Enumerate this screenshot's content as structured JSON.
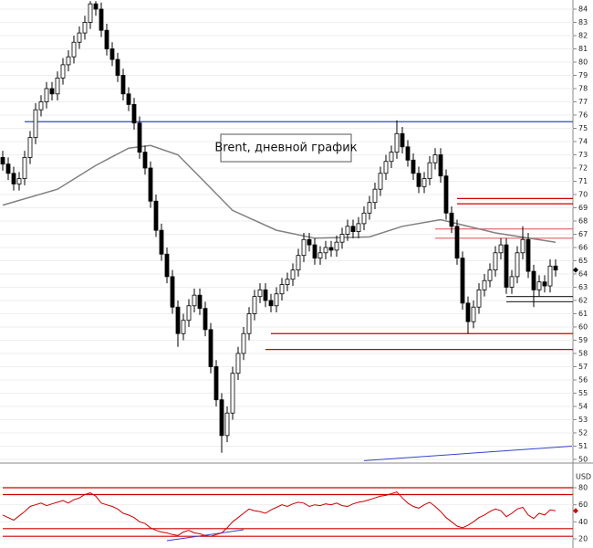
{
  "chart_data": [
    {
      "type": "candlestick",
      "annotation": "Brent, дневной график",
      "ylim": [
        49.86,
        84.69
      ],
      "yticks": [
        50,
        51,
        52,
        53,
        54,
        55,
        56,
        57,
        58,
        59,
        60,
        61,
        62,
        63,
        64,
        65,
        66,
        67,
        68,
        69,
        70,
        71,
        72,
        73,
        74,
        75,
        76,
        77,
        78,
        79,
        80,
        81,
        82,
        83,
        84
      ],
      "grid": true,
      "up_color": "#ffffff",
      "down_color": "#000000",
      "color": "#000000",
      "open": [
        72.8,
        72.3,
        71.6,
        70.8,
        71.2,
        72.8,
        74.3,
        76.4,
        77.0,
        78.0,
        77.6,
        78.8,
        79.8,
        80.4,
        81.5,
        82.2,
        83.0,
        84.4,
        84.0,
        82.4,
        81.0,
        80.2,
        79.0,
        77.6,
        76.8,
        75.4,
        73.2,
        72.0,
        69.5,
        67.3,
        65.5,
        63.8,
        61.5,
        59.5,
        60.5,
        61.6,
        62.4,
        61.4,
        59.8,
        57.0,
        54.5,
        51.8,
        53.5,
        56.5,
        58.0,
        59.5,
        61.0,
        62.3,
        62.8,
        62.0,
        61.6,
        62.5,
        63.2,
        63.6,
        64.3,
        65.4,
        66.6,
        66.2,
        65.2,
        65.6,
        66.0,
        65.8,
        66.4,
        67.0,
        67.6,
        67.2,
        67.8,
        68.6,
        69.4,
        70.4,
        71.6,
        72.5,
        73.2,
        74.6,
        73.6,
        72.6,
        71.6,
        70.6,
        71.2,
        72.4,
        73.0,
        71.4,
        68.6,
        67.6,
        65.2,
        61.8,
        60.4,
        61.5,
        62.8,
        63.5,
        64.3,
        65.6,
        66.2,
        63.0,
        63.8,
        65.6,
        66.6,
        64.2,
        62.8,
        63.4,
        63.1,
        64.6
      ],
      "high": [
        73.3,
        72.8,
        72.1,
        71.7,
        73.3,
        74.8,
        76.9,
        77.5,
        78.5,
        78.5,
        79.3,
        80.3,
        80.9,
        82.0,
        82.7,
        83.5,
        84.6,
        84.6,
        84.5,
        82.9,
        81.5,
        80.7,
        79.5,
        78.1,
        77.3,
        75.9,
        73.7,
        72.5,
        70.0,
        67.8,
        66.0,
        64.3,
        62.0,
        61.0,
        62.1,
        62.9,
        62.9,
        61.9,
        60.3,
        57.5,
        55.0,
        54.0,
        57.0,
        58.5,
        60.0,
        61.5,
        62.8,
        63.3,
        63.3,
        62.5,
        63.0,
        63.7,
        64.1,
        64.8,
        65.9,
        67.1,
        67.1,
        66.7,
        66.1,
        66.5,
        66.5,
        66.9,
        67.5,
        68.1,
        68.1,
        68.3,
        69.1,
        69.9,
        70.9,
        72.1,
        73.0,
        73.7,
        75.6,
        75.1,
        74.1,
        73.1,
        72.1,
        71.7,
        72.9,
        73.5,
        73.5,
        71.9,
        69.1,
        68.1,
        65.7,
        62.3,
        62.0,
        63.3,
        64.0,
        64.8,
        66.1,
        66.7,
        66.7,
        64.3,
        66.1,
        67.6,
        67.1,
        64.7,
        63.9,
        63.9,
        65.1,
        65.1
      ],
      "low": [
        71.8,
        71.1,
        70.3,
        70.3,
        70.7,
        72.3,
        73.8,
        75.9,
        76.5,
        77.1,
        77.1,
        78.3,
        79.3,
        79.9,
        81.0,
        81.7,
        82.5,
        83.5,
        81.9,
        80.5,
        79.7,
        78.5,
        77.1,
        76.3,
        74.9,
        72.7,
        71.5,
        69.0,
        66.8,
        65.0,
        63.3,
        61.0,
        58.5,
        59.0,
        60.0,
        61.1,
        60.9,
        59.3,
        56.5,
        54.0,
        50.5,
        51.3,
        53.0,
        56.0,
        57.5,
        59.0,
        60.5,
        61.8,
        61.5,
        61.1,
        61.1,
        62.0,
        62.7,
        63.1,
        63.8,
        64.9,
        65.7,
        64.7,
        64.7,
        65.1,
        65.3,
        65.3,
        65.9,
        66.5,
        66.7,
        66.7,
        67.3,
        68.1,
        68.9,
        69.9,
        71.1,
        72.0,
        72.7,
        73.1,
        72.1,
        71.1,
        70.1,
        70.1,
        70.7,
        71.9,
        70.9,
        68.1,
        67.1,
        64.7,
        61.3,
        59.5,
        59.9,
        61.0,
        62.3,
        63.0,
        63.8,
        65.1,
        62.5,
        62.5,
        63.3,
        65.1,
        63.7,
        61.5,
        62.3,
        62.6,
        62.6,
        63.8
      ],
      "close": [
        72.3,
        71.6,
        70.8,
        71.2,
        72.8,
        74.3,
        76.4,
        77.0,
        78.0,
        77.6,
        78.8,
        79.8,
        80.4,
        81.5,
        82.2,
        83.0,
        84.4,
        84.0,
        82.4,
        81.0,
        80.2,
        79.0,
        77.6,
        76.8,
        75.4,
        73.2,
        72.0,
        69.5,
        67.3,
        65.5,
        63.8,
        61.5,
        59.5,
        60.5,
        61.6,
        62.4,
        61.4,
        59.8,
        57.0,
        54.5,
        51.8,
        53.5,
        56.5,
        58.0,
        59.5,
        61.0,
        62.3,
        62.8,
        62.0,
        61.6,
        62.5,
        63.2,
        63.6,
        64.3,
        65.4,
        66.6,
        66.2,
        65.2,
        65.6,
        66.0,
        65.8,
        66.4,
        67.0,
        67.6,
        67.2,
        67.8,
        68.6,
        69.4,
        70.4,
        71.6,
        72.5,
        73.2,
        74.6,
        73.6,
        72.6,
        71.6,
        70.6,
        71.2,
        72.4,
        73.0,
        71.4,
        68.6,
        67.6,
        65.2,
        61.8,
        60.4,
        61.5,
        62.8,
        63.5,
        64.3,
        65.6,
        66.2,
        63.0,
        63.8,
        65.6,
        66.6,
        64.2,
        62.8,
        63.4,
        63.1,
        64.6,
        64.3
      ],
      "ma": {
        "color": "#808080",
        "x": [
          0,
          10,
          17,
          23,
          27,
          32,
          37,
          42,
          50,
          57,
          67,
          73,
          80,
          83,
          90,
          101
        ],
        "values": [
          69.2,
          70.4,
          72.2,
          73.5,
          73.7,
          73.0,
          70.9,
          68.8,
          67.3,
          66.7,
          66.8,
          67.6,
          68.1,
          67.8,
          67.1,
          66.4
        ]
      },
      "levels": [
        {
          "value": 75.5,
          "start": 4,
          "color": "#3344cc"
        },
        {
          "value": 69.7,
          "start": 83,
          "color": "#cc0000"
        },
        {
          "value": 69.3,
          "start": 83,
          "color": "#cc0000"
        },
        {
          "value": 67.4,
          "start": 79,
          "color": "#e06060"
        },
        {
          "value": 66.7,
          "start": 79,
          "color": "#e06060"
        },
        {
          "value": 59.5,
          "start": 49,
          "color": "#cc0000"
        },
        {
          "value": 58.3,
          "start": 48,
          "color": "#cc0000"
        },
        {
          "value": 62.3,
          "start": 92,
          "color": "#333333"
        },
        {
          "value": 61.9,
          "start": 92,
          "color": "#333333"
        }
      ],
      "trendlines": [
        {
          "x": [
            66,
            104
          ],
          "values": [
            49.9,
            51.0
          ],
          "color": "#3344cc"
        }
      ]
    },
    {
      "type": "line",
      "currency": "USD",
      "ylim": [
        9.3,
        105.7
      ],
      "yticks": [
        20,
        40,
        60,
        80
      ],
      "color": "#cc0000",
      "values": [
        48,
        45,
        42,
        47,
        52,
        58,
        60,
        62,
        59,
        61,
        63,
        65,
        62,
        66,
        68,
        72,
        74,
        70,
        62,
        60,
        58,
        55,
        50,
        48,
        45,
        40,
        38,
        33,
        30,
        28,
        27,
        25,
        24,
        28,
        30,
        27,
        26,
        24,
        23,
        25,
        27,
        33,
        40,
        45,
        50,
        55,
        53,
        52,
        50,
        54,
        57,
        60,
        58,
        61,
        63,
        62,
        58,
        60,
        59,
        61,
        60,
        62,
        59,
        58,
        61,
        63,
        64,
        66,
        68,
        70,
        71,
        73,
        75,
        68,
        62,
        58,
        56,
        60,
        63,
        58,
        52,
        45,
        40,
        35,
        33,
        36,
        40,
        45,
        48,
        52,
        55,
        53,
        46,
        50,
        55,
        57,
        48,
        44,
        50,
        48,
        54,
        53
      ],
      "levels": [
        {
          "value": 80,
          "start": 0,
          "color": "#cc0000"
        },
        {
          "value": 72,
          "start": 0,
          "color": "#cc0000"
        },
        {
          "value": 32,
          "start": 0,
          "color": "#cc0000"
        },
        {
          "value": 23,
          "start": 0,
          "color": "#cc0000"
        }
      ],
      "trendlines": [
        {
          "x": [
            30,
            44
          ],
          "values": [
            17.9,
            30.7
          ],
          "color": "#3344cc"
        }
      ]
    }
  ]
}
